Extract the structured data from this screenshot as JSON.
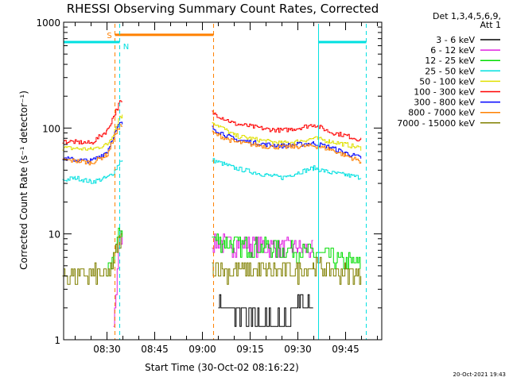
{
  "chart_data": {
    "type": "line",
    "title": "RHESSI Observing Summary Count Rates, Corrected",
    "xlabel": "Start Time (30-Oct-02 08:16:22)",
    "ylabel": "Corrected Count Rate (s⁻¹ detector⁻¹)",
    "yscale": "log",
    "ylim": [
      1,
      1000
    ],
    "xlim_minutes_after_start": [
      0,
      100
    ],
    "x_ticks": [
      "08:30",
      "08:45",
      "09:00",
      "09:15",
      "09:30",
      "09:45"
    ],
    "y_ticks": [
      "1",
      "10",
      "100",
      "1000"
    ],
    "grid": false,
    "legend_position": "top-right",
    "legend_header": [
      "Det 1,3,4,5,6,9,",
      "Att 1"
    ],
    "timestamp": "20-Oct-2021 19:43",
    "data_gap": [
      "08:35",
      "09:03"
    ],
    "series": [
      {
        "name": "3 - 6 keV",
        "color": "#000000",
        "x": [
          "08:16",
          "08:32",
          "08:34",
          "09:03",
          "09:05",
          "09:15",
          "09:25",
          "09:30",
          "09:35",
          "09:40",
          "09:50"
        ],
        "y": [
          null,
          null,
          null,
          null,
          2.2,
          1.6,
          1.4,
          2.3,
          2.0,
          null,
          null
        ]
      },
      {
        "name": "6 - 12 keV",
        "color": "#e020e0",
        "x": [
          "08:16",
          "08:30",
          "08:32",
          "08:34",
          "09:03",
          "09:10",
          "09:15",
          "09:25",
          "09:30",
          "09:35",
          "09:40",
          "09:50"
        ],
        "y": [
          null,
          null,
          1.2,
          9.5,
          8.5,
          8.0,
          8.0,
          7.5,
          7.5,
          7.0,
          null,
          null
        ]
      },
      {
        "name": "12 - 25 keV",
        "color": "#00dd00",
        "x": [
          "08:16",
          "08:28",
          "08:30",
          "08:32",
          "08:34",
          "09:03",
          "09:10",
          "09:20",
          "09:30",
          "09:35",
          "09:40",
          "09:50"
        ],
        "y": [
          null,
          null,
          4.0,
          6.0,
          11.0,
          9.0,
          8.0,
          7.5,
          7.0,
          6.5,
          6.0,
          5.0
        ]
      },
      {
        "name": "25 - 50 keV",
        "color": "#00e0e0",
        "x": [
          "08:16",
          "08:20",
          "08:25",
          "08:30",
          "08:32",
          "08:34",
          "09:03",
          "09:10",
          "09:20",
          "09:25",
          "09:30",
          "09:35",
          "09:40",
          "09:45",
          "09:50"
        ],
        "y": [
          32,
          34,
          31,
          34,
          38,
          48,
          50,
          42,
          36,
          34,
          38,
          42,
          38,
          36,
          34
        ]
      },
      {
        "name": "50 - 100 keV",
        "color": "#e0e000",
        "x": [
          "08:16",
          "08:20",
          "08:25",
          "08:30",
          "08:32",
          "08:34",
          "09:03",
          "09:10",
          "09:20",
          "09:25",
          "09:30",
          "09:35",
          "09:40",
          "09:45",
          "09:50"
        ],
        "y": [
          65,
          64,
          63,
          70,
          90,
          130,
          115,
          85,
          75,
          72,
          75,
          80,
          75,
          70,
          64
        ]
      },
      {
        "name": "100 - 300 keV",
        "color": "#ff0000",
        "x": [
          "08:16",
          "08:20",
          "08:25",
          "08:30",
          "08:32",
          "08:34",
          "09:03",
          "09:10",
          "09:20",
          "09:25",
          "09:30",
          "09:35",
          "09:40",
          "09:45",
          "09:50"
        ],
        "y": [
          75,
          74,
          72,
          95,
          130,
          175,
          140,
          110,
          98,
          95,
          100,
          108,
          92,
          85,
          77
        ]
      },
      {
        "name": "300 - 800 keV",
        "color": "#0000ff",
        "x": [
          "08:16",
          "08:20",
          "08:25",
          "08:30",
          "08:32",
          "08:34",
          "09:03",
          "09:10",
          "09:20",
          "09:25",
          "09:30",
          "09:35",
          "09:40",
          "09:45",
          "09:50"
        ],
        "y": [
          52,
          50,
          49,
          60,
          85,
          110,
          100,
          78,
          70,
          68,
          70,
          72,
          66,
          58,
          52
        ]
      },
      {
        "name": "800 - 7000 keV",
        "color": "#ff8000",
        "x": [
          "08:16",
          "08:20",
          "08:25",
          "08:30",
          "08:32",
          "08:34",
          "09:03",
          "09:10",
          "09:20",
          "09:25",
          "09:30",
          "09:35",
          "09:40",
          "09:45",
          "09:50"
        ],
        "y": [
          50,
          49,
          47,
          56,
          80,
          105,
          90,
          74,
          67,
          66,
          67,
          68,
          63,
          55,
          48
        ]
      },
      {
        "name": "7000 - 15000 keV",
        "color": "#808000",
        "x": [
          "08:16",
          "08:25",
          "08:30",
          "08:32",
          "08:34",
          "09:03",
          "09:10",
          "09:20",
          "09:30",
          "09:35",
          "09:40",
          "09:45",
          "09:50"
        ],
        "y": [
          4.0,
          4.2,
          4.0,
          5.5,
          9.0,
          5.0,
          4.5,
          4.5,
          4.5,
          5.0,
          4.5,
          4.2,
          4.0
        ]
      }
    ],
    "annotations": [
      {
        "label": "S",
        "color": "#ff8000",
        "level": 760,
        "start": "08:32:30",
        "end": "09:03:30",
        "markers": [
          "08:32:30",
          "09:03:30"
        ],
        "marker_style": "dashed"
      },
      {
        "label": "N",
        "color": "#00e0e0",
        "level": 650,
        "segments": [
          [
            "08:16:22",
            "08:34:00"
          ],
          [
            "09:36:30",
            "09:51:30"
          ]
        ],
        "markers": [
          "08:16:22",
          "08:34:00",
          "09:36:30",
          "09:51:30"
        ],
        "marker_style": "solid-dashed"
      }
    ]
  }
}
